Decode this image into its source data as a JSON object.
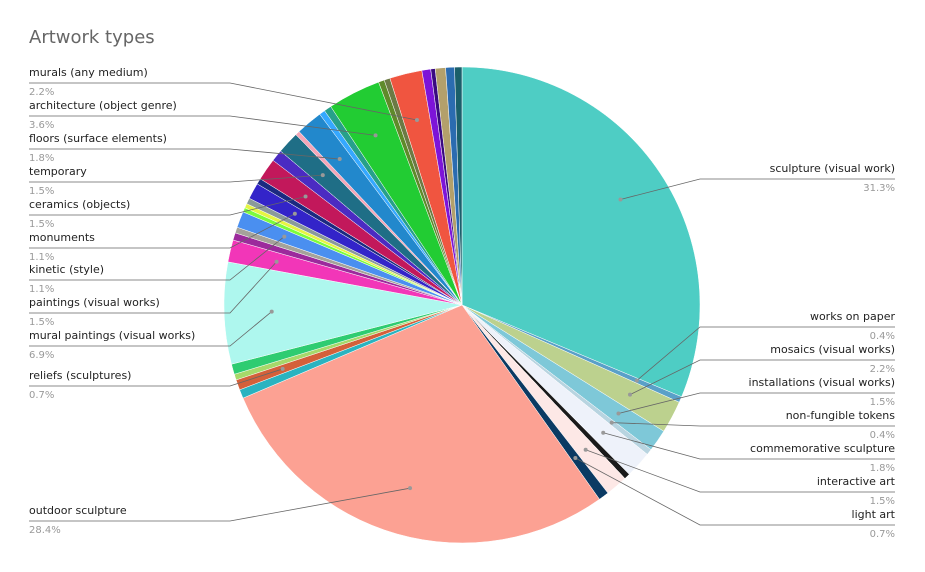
{
  "chart_data": {
    "type": "pie",
    "title": "Artwork types",
    "categories": [
      "sculpture (visual work)",
      "works on paper",
      "mosaics (visual works)",
      "installations (visual works)",
      "non-fungible tokens",
      "commemorative sculpture",
      null,
      "interactive art",
      "light art",
      "outdoor sculpture",
      null,
      "reliefs (sculptures)",
      null,
      null,
      "mural paintings (visual works)",
      "paintings (visual works)",
      null,
      null,
      "kinetic (style)",
      null,
      null,
      null,
      "monuments",
      null,
      "ceramics (objects)",
      null,
      "temporary",
      null,
      "floors (surface elements)",
      null,
      null,
      "architecture (object genre)",
      null,
      null,
      "murals (any medium)",
      null,
      null,
      null,
      null,
      null
    ],
    "values": [
      31.3,
      0.4,
      2.2,
      1.5,
      0.4,
      1.8,
      0.4,
      1.5,
      0.7,
      28.4,
      0.6,
      0.7,
      0.4,
      0.7,
      6.9,
      1.5,
      0.5,
      0.4,
      1.1,
      0.3,
      0.3,
      0.4,
      1.1,
      0.4,
      1.5,
      0.8,
      1.5,
      0.3,
      1.8,
      0.4,
      0.5,
      3.6,
      0.4,
      0.4,
      2.2,
      0.6,
      0.3,
      0.7,
      0.6,
      0.5
    ],
    "value_labels": [
      "31.3%",
      "0.4%",
      "2.2%",
      "1.5%",
      "0.4%",
      "1.8%",
      null,
      "1.5%",
      "0.7%",
      "28.4%",
      null,
      "0.7%",
      null,
      null,
      "6.9%",
      "1.5%",
      null,
      null,
      "1.1%",
      null,
      null,
      null,
      "1.1%",
      null,
      "1.5%",
      null,
      "1.5%",
      null,
      "1.8%",
      null,
      null,
      "3.6%",
      null,
      null,
      "2.2%",
      null,
      null,
      null,
      null,
      null
    ],
    "colors": [
      "#4ecdc4",
      "#5aa0c8",
      "#bcd18e",
      "#7ec8d8",
      "#b8d4e0",
      "#eef2fa",
      "#1a1a1a",
      "#fde8e6",
      "#0b3a63",
      "#fca193",
      "#2ab3c0",
      "#d4603a",
      "#a6d96a",
      "#2ecc71",
      "#aef7ee",
      "#f236b8",
      "#9c2a9c",
      "#a5a39a",
      "#4a8ff0",
      "#7cfc3c",
      "#e6f542",
      "#8a9a9a",
      "#3324c9",
      "#1b2a80",
      "#c2185b",
      "#4b2bc2",
      "#1f6e86",
      "#f4a6b8",
      "#2288cc",
      "#35a8ff",
      "#27a08a",
      "#22cc33",
      "#5f8a2a",
      "#6c7a44",
      "#f05540",
      "#7d14d8",
      "#3a0a80",
      "#b3a06b",
      "#2b6cb0",
      "#1a5f6a"
    ]
  }
}
